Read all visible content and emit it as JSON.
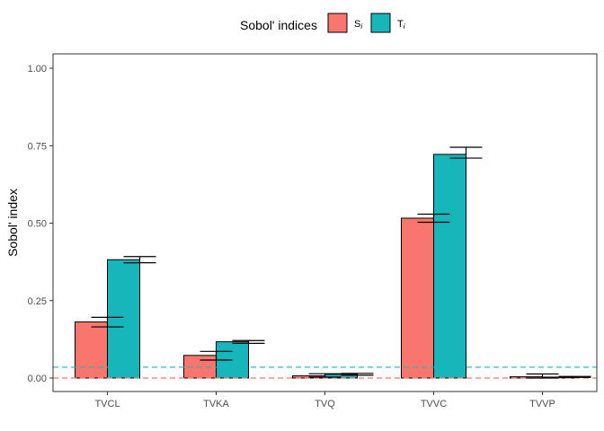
{
  "chart_data": {
    "type": "bar",
    "title": "",
    "xlabel": "",
    "ylabel": "Sobol' index",
    "ylim": [
      0,
      1
    ],
    "yticks": [
      "0.00",
      "0.25",
      "0.50",
      "0.75",
      "1.00"
    ],
    "categories": [
      "TVCL",
      "TVKA",
      "TVQ",
      "TVVC",
      "TVVP"
    ],
    "legend": {
      "title": "Sobol' indices",
      "position": "top",
      "entries": [
        {
          "base": "S",
          "sub": "i"
        },
        {
          "base": "T",
          "sub": "i"
        }
      ]
    },
    "series": [
      {
        "name": "Si",
        "color": "#F8766D",
        "values": [
          0.181,
          0.073,
          0.007,
          0.516,
          0.004
        ],
        "error_low": [
          0.165,
          0.058,
          0.003,
          0.503,
          0.0
        ],
        "error_high": [
          0.196,
          0.086,
          0.014,
          0.529,
          0.013
        ]
      },
      {
        "name": "Ti",
        "color": "#17B6BB",
        "values": [
          0.382,
          0.117,
          0.012,
          0.722,
          0.003
        ],
        "error_low": [
          0.372,
          0.112,
          0.009,
          0.71,
          0.002
        ],
        "error_high": [
          0.392,
          0.121,
          0.015,
          0.745,
          0.005
        ]
      }
    ],
    "reference_lines": [
      {
        "y": 0.035,
        "color": "#17B6BB",
        "style": "dashed"
      },
      {
        "y": 0.0,
        "color": "#F8766D",
        "style": "dashed"
      }
    ],
    "grid": false
  }
}
